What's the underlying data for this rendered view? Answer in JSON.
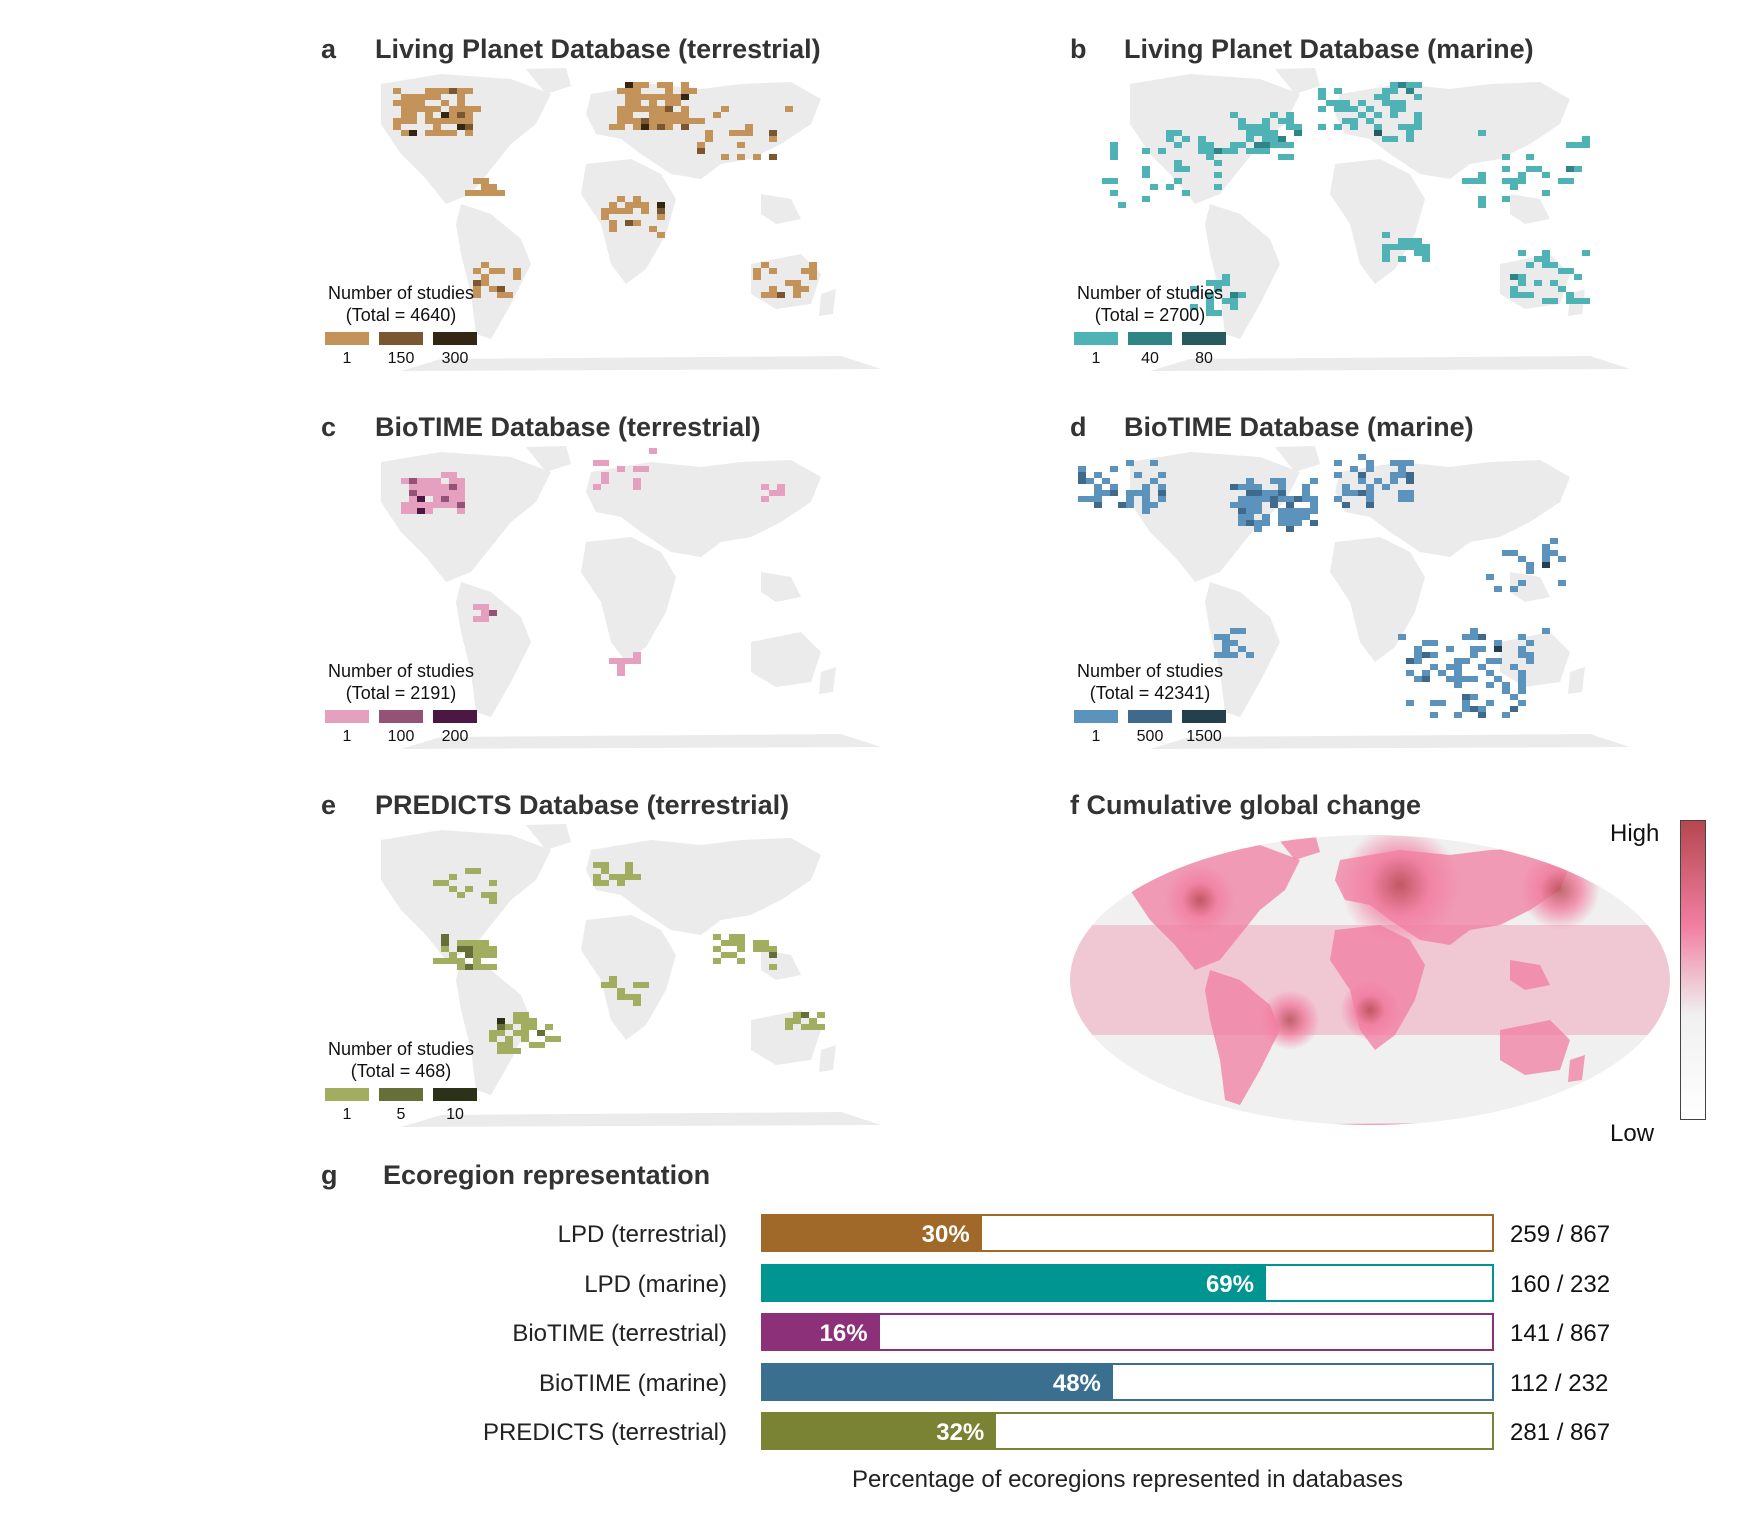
{
  "panels": [
    {
      "letter": "a",
      "title": "Living Planet Database (terrestrial)",
      "legend": {
        "title_line1": "Number of studies",
        "title_line2": "(Total = 4640)",
        "ticks": [
          "1",
          "150",
          "300"
        ],
        "colors": [
          "#c4935a",
          "#7a5631",
          "#352614"
        ]
      }
    },
    {
      "letter": "b",
      "title": "Living Planet Database (marine)",
      "legend": {
        "title_line1": "Number of studies",
        "title_line2": "(Total = 2700)",
        "ticks": [
          "1",
          "40",
          "80"
        ],
        "colors": [
          "#4fb3b5",
          "#2f8486",
          "#275a5c"
        ]
      }
    },
    {
      "letter": "c",
      "title": "BioTIME Database (terrestrial)",
      "legend": {
        "title_line1": "Number of studies",
        "title_line2": "(Total = 2191)",
        "ticks": [
          "1",
          "100",
          "200"
        ],
        "colors": [
          "#e6a0bf",
          "#935276",
          "#4a1842"
        ]
      }
    },
    {
      "letter": "d",
      "title": "BioTIME Database (marine)",
      "legend": {
        "title_line1": "Number of studies",
        "title_line2": "(Total = 42341)",
        "ticks": [
          "1",
          "500",
          "1500"
        ],
        "colors": [
          "#5b93bd",
          "#3f6a8c",
          "#24404f"
        ]
      }
    },
    {
      "letter": "e",
      "title": "PREDICTS Database (terrestrial)",
      "legend": {
        "title_line1": "Number of studies",
        "title_line2": "(Total = 468)",
        "ticks": [
          "1",
          "5",
          "10"
        ],
        "colors": [
          "#a2ad5f",
          "#666f38",
          "#2c3218"
        ]
      }
    },
    {
      "letter": "f",
      "title": "Cumulative global change",
      "legend": {
        "high": "High",
        "low": "Low",
        "colors": [
          "#b5474f",
          "#f17ea1",
          "#f0f0f0",
          "#ffffff"
        ]
      }
    }
  ],
  "map_land_color": "#ebebeb",
  "chart_data": {
    "type": "bar",
    "panel": "g",
    "title": "Ecoregion representation",
    "xlabel": "Percentage of ecoregions represented in databases",
    "xlim": [
      0,
      100
    ],
    "categories": [
      "LPD (terrestrial)",
      "LPD (marine)",
      "BioTIME (terrestrial)",
      "BioTIME (marine)",
      "PREDICTS (terrestrial)"
    ],
    "values": [
      30,
      69,
      16,
      48,
      32
    ],
    "value_labels": [
      "30%",
      "69%",
      "16%",
      "48%",
      "32%"
    ],
    "counts": [
      "259 / 867",
      "160 / 232",
      "141 / 867",
      "112 / 232",
      "281 / 867"
    ],
    "colors": [
      "#a0692a",
      "#009590",
      "#8c3079",
      "#3a6f8f",
      "#7a8234"
    ]
  }
}
